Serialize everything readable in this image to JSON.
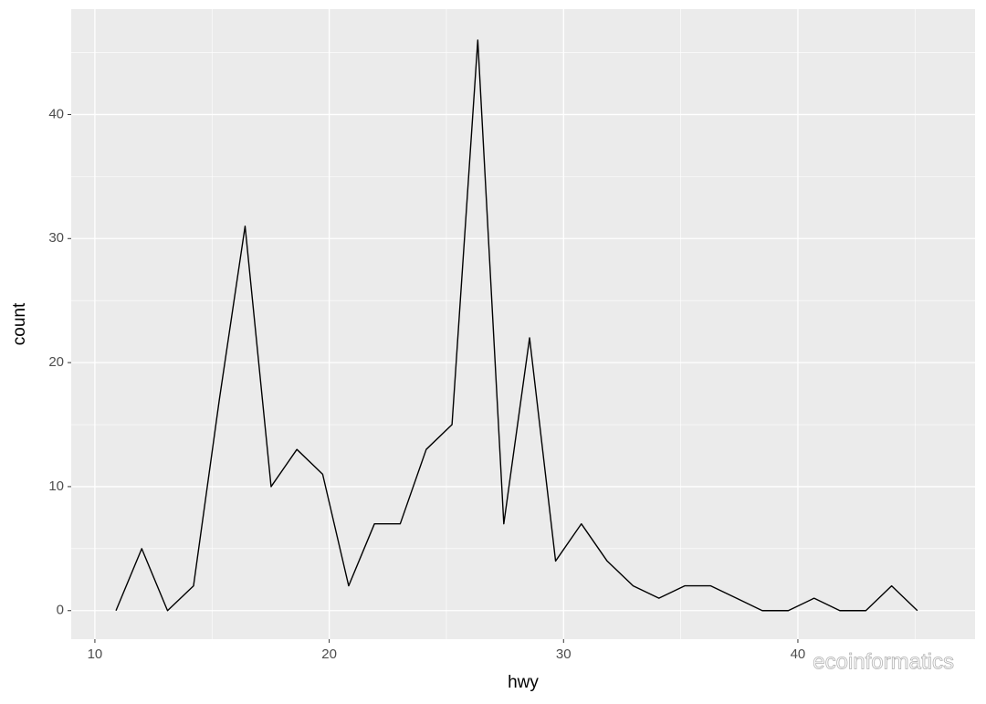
{
  "chart_data": {
    "type": "line",
    "x_label": "hwy",
    "y_label": "count",
    "x": [
      10.9,
      12.0,
      13.1,
      14.21,
      15.31,
      16.41,
      17.52,
      18.62,
      19.72,
      20.83,
      21.93,
      23.03,
      24.14,
      25.24,
      26.34,
      27.45,
      28.55,
      29.66,
      30.76,
      31.86,
      32.97,
      34.07,
      35.17,
      36.28,
      37.38,
      38.48,
      39.59,
      40.69,
      41.79,
      42.9,
      44.0,
      45.1
    ],
    "series": [
      {
        "color": "#000000",
        "values": [
          0,
          5,
          0,
          2,
          17,
          31,
          10,
          13,
          11,
          2,
          7,
          7,
          13,
          15,
          46,
          7,
          22,
          4,
          7,
          4,
          2,
          1,
          2,
          2,
          1,
          0,
          0,
          1,
          0,
          0,
          2,
          0
        ]
      }
    ],
    "xlim": [
      8.99,
      47.56
    ],
    "ylim": [
      -2.3,
      48.5
    ],
    "xticks": [
      10,
      20,
      30,
      40
    ],
    "yticks": [
      0,
      10,
      20,
      30,
      40
    ],
    "grid": true,
    "panel_color": "#EBEBEB",
    "watermark": "ecoinformatics"
  }
}
